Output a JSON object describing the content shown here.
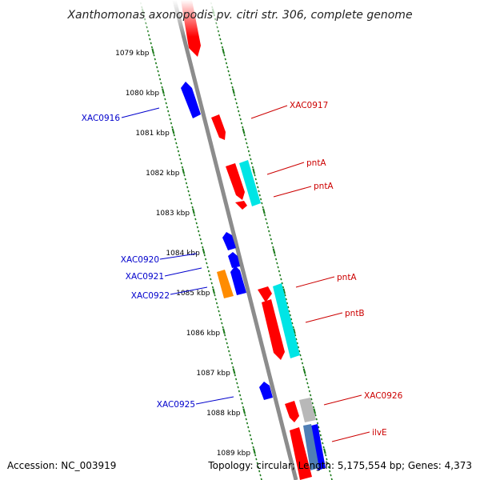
{
  "title": "Xanthomonas axonopodis pv. citri str. 306, complete genome",
  "accession": "Accession: NC_003919",
  "summary": "Topology: circular; Length: 5,175,554 bp; Genes: 4,373",
  "colors": {
    "forward_gene": "#ff0000",
    "reverse_gene": "#0000ff",
    "cds_forward": "#00e5e5",
    "other_feature": "#ff8c00",
    "pseudo": "#b0b0b0",
    "steelblue_feature": "#4f7fb5",
    "backbone": "#8c8c8c",
    "tick": "#1a7a1a"
  },
  "ticks": [
    "1079 kbp",
    "1080 kbp",
    "1081 kbp",
    "1082 kbp",
    "1083 kbp",
    "1084 kbp",
    "1085 kbp",
    "1086 kbp",
    "1087 kbp",
    "1088 kbp",
    "1089 kbp"
  ],
  "left_labels": [
    "XAC0916",
    "XAC0920",
    "XAC0921",
    "XAC0922",
    "XAC0925"
  ],
  "right_labels": [
    "XAC0917",
    "pntA",
    "pntA",
    "pntA",
    "pntB",
    "XAC0926",
    "ilvE"
  ]
}
